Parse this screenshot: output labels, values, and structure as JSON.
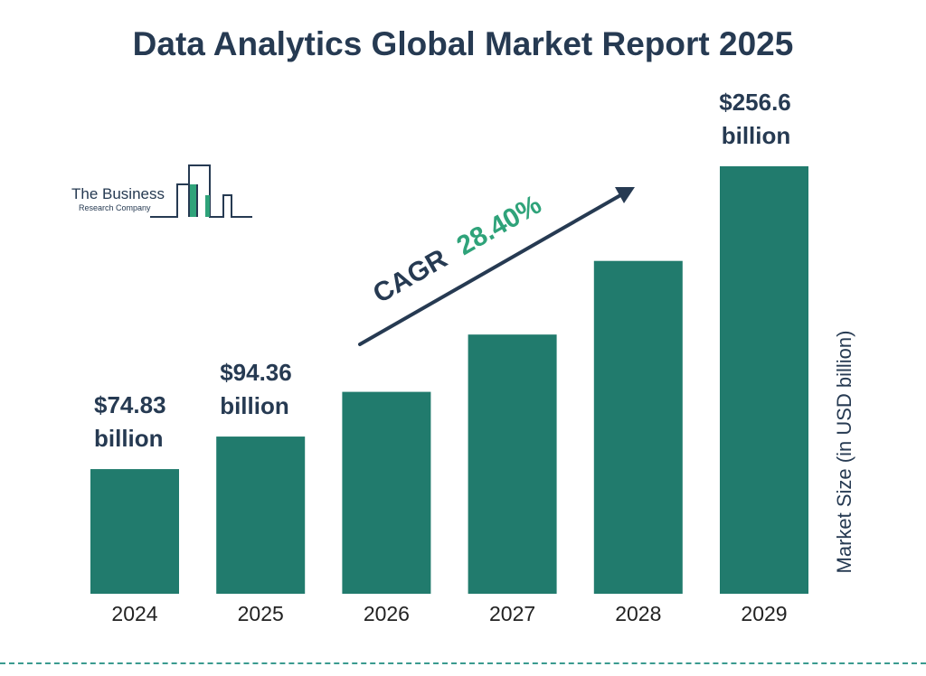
{
  "page": {
    "title": "Data Analytics Global Market Report 2025"
  },
  "logo": {
    "name": "The Business",
    "subname": "Research Company"
  },
  "colors": {
    "bar": "#217b6d",
    "text": "#263a52",
    "accent": "#2fa37a",
    "divider": "#3a9a8f"
  },
  "chart_data": {
    "type": "bar",
    "title": "Data Analytics Global Market Report 2025",
    "xlabel": "",
    "ylabel": "Market Size (in USD billion)",
    "categories": [
      "2024",
      "2025",
      "2026",
      "2027",
      "2028",
      "2029"
    ],
    "values": [
      74.83,
      94.36,
      121.2,
      155.6,
      199.8,
      256.6
    ],
    "ylim": [
      0,
      256.6
    ],
    "grid": false,
    "data_labels": [
      {
        "index": 0,
        "lines": [
          "$74.83",
          "billion"
        ]
      },
      {
        "index": 1,
        "lines": [
          "$94.36",
          "billion"
        ]
      },
      {
        "index": 5,
        "lines": [
          "$256.6",
          "billion"
        ]
      }
    ],
    "annotation": {
      "prefix": "CAGR",
      "value": "28.40%",
      "from_category": "2026",
      "to_category": "2028"
    }
  }
}
